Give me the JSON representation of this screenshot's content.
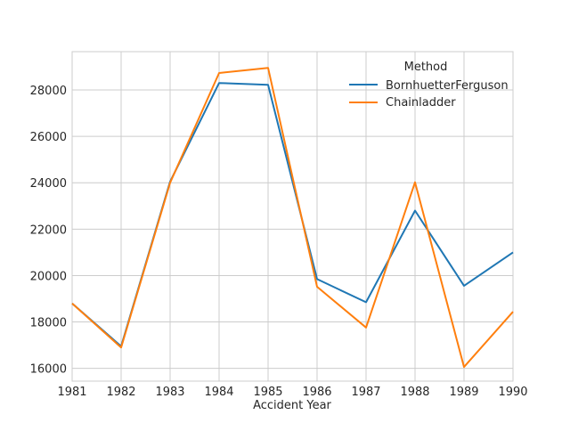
{
  "chart_data": {
    "type": "line",
    "xlabel": "Accident Year",
    "ylabel": "",
    "xlim": [
      1981,
      1990
    ],
    "ylim": [
      15450,
      29650
    ],
    "x": [
      1981,
      1982,
      1983,
      1984,
      1985,
      1986,
      1987,
      1988,
      1989,
      1990
    ],
    "x_ticks": [
      "1981",
      "1982",
      "1983",
      "1984",
      "1985",
      "1986",
      "1987",
      "1988",
      "1989",
      "1990"
    ],
    "y_ticks": [
      16000,
      18000,
      20000,
      22000,
      24000,
      26000,
      28000
    ],
    "y_tick_labels": [
      "16000",
      "18000",
      "20000",
      "22000",
      "24000",
      "26000",
      "28000"
    ],
    "grid": true,
    "legend": {
      "title": "Method",
      "placement": "top-right"
    },
    "series": [
      {
        "name": "BornhuetterFerguson",
        "color": "#1f77b4",
        "values": [
          18800,
          16950,
          24050,
          28300,
          28220,
          19850,
          18850,
          22800,
          19560,
          21000
        ]
      },
      {
        "name": "Chainladder",
        "color": "#ff7f0e",
        "values": [
          18800,
          16900,
          24000,
          28730,
          28950,
          19520,
          17760,
          24020,
          16060,
          18440
        ]
      }
    ]
  },
  "colors": {
    "grid": "#cccccc",
    "text": "#262626",
    "background": "#ffffff"
  }
}
